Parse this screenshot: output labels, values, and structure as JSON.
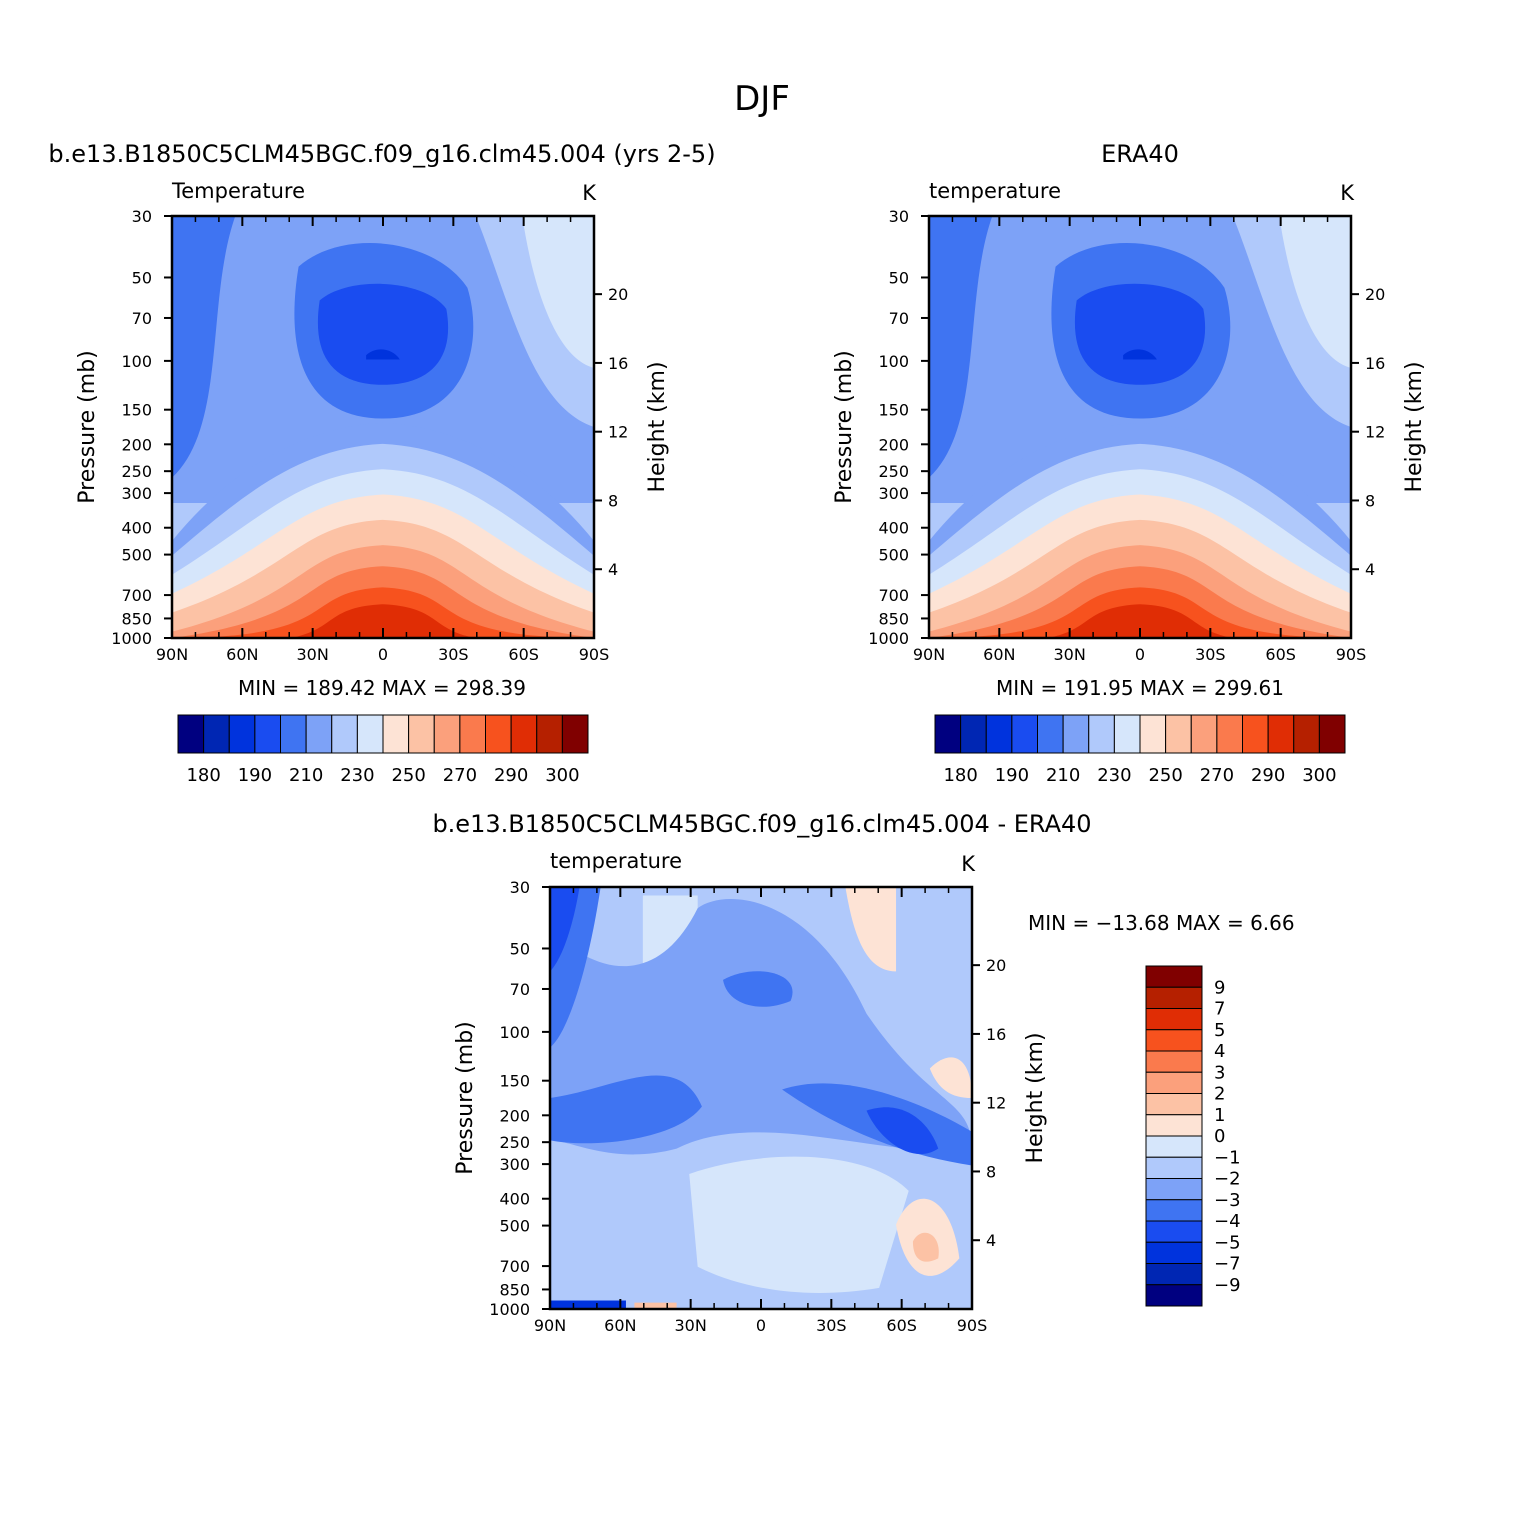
{
  "title": "DJF",
  "panels": [
    {
      "id": "model",
      "subtitle": "b.e13.B1850C5CLM45BGC.f09_g16.clm45.004 (yrs 2-5)",
      "left_label": "Temperature",
      "right_label": "K",
      "ylabel": "Pressure (mb)",
      "y2label": "Height (km)",
      "x_ticks": [
        "90N",
        "60N",
        "30N",
        "0",
        "30S",
        "60S",
        "90S"
      ],
      "p_ticks": [
        "30",
        "50",
        "70",
        "100",
        "150",
        "200",
        "250",
        "300",
        "400",
        "500",
        "700",
        "850",
        "1000"
      ],
      "h_ticks": [
        "20",
        "16",
        "12",
        "8",
        "4"
      ],
      "minmax": "MIN = 189.42   MAX = 298.39",
      "colorbar_labels": [
        "180",
        "190",
        "210",
        "230",
        "250",
        "270",
        "290",
        "300"
      ]
    },
    {
      "id": "obs",
      "subtitle": "ERA40",
      "left_label": "temperature",
      "right_label": "K",
      "ylabel": "Pressure (mb)",
      "y2label": "Height (km)",
      "x_ticks": [
        "90N",
        "60N",
        "30N",
        "0",
        "30S",
        "60S",
        "90S"
      ],
      "p_ticks": [
        "30",
        "50",
        "70",
        "100",
        "150",
        "200",
        "250",
        "300",
        "400",
        "500",
        "700",
        "850",
        "1000"
      ],
      "h_ticks": [
        "20",
        "16",
        "12",
        "8",
        "4"
      ],
      "minmax": "MIN = 191.95   MAX = 299.61",
      "colorbar_labels": [
        "180",
        "190",
        "210",
        "230",
        "250",
        "270",
        "290",
        "300"
      ]
    },
    {
      "id": "diff",
      "subtitle": "b.e13.B1850C5CLM45BGC.f09_g16.clm45.004 - ERA40",
      "left_label": "temperature",
      "right_label": "K",
      "ylabel": "Pressure (mb)",
      "y2label": "Height (km)",
      "x_ticks": [
        "90N",
        "60N",
        "30N",
        "0",
        "30S",
        "60S",
        "90S"
      ],
      "p_ticks": [
        "30",
        "50",
        "70",
        "100",
        "150",
        "200",
        "250",
        "300",
        "400",
        "500",
        "700",
        "850",
        "1000"
      ],
      "h_ticks": [
        "20",
        "16",
        "12",
        "8",
        "4"
      ],
      "minmax": "MIN = −13.68   MAX =     6.66",
      "colorbar_labels": [
        "9",
        "7",
        "5",
        "4",
        "3",
        "2",
        "1",
        "0",
        "−1",
        "−2",
        "−3",
        "−4",
        "−5",
        "−7",
        "−9"
      ]
    }
  ],
  "chart_data": [
    {
      "type": "heatmap",
      "title": "Temperature",
      "series_name": "b.e13.B1850C5CLM45BGC.f09_g16.clm45.004 (yrs 2-5)",
      "units": "K",
      "x": [
        "90N",
        "60N",
        "30N",
        "0",
        "30S",
        "60S",
        "90S"
      ],
      "y_pressure_mb": [
        30,
        50,
        70,
        100,
        150,
        200,
        250,
        300,
        400,
        500,
        700,
        850,
        1000
      ],
      "levels": [
        175,
        180,
        190,
        200,
        210,
        220,
        230,
        240,
        250,
        260,
        270,
        280,
        290,
        300
      ],
      "level_colors": [
        "#000080",
        "#0026b3",
        "#0033dd",
        "#1a4cf0",
        "#3f74f2",
        "#7da2f7",
        "#b0c9fb",
        "#d6e6fb",
        "#fde3d5",
        "#fcc2a5",
        "#fba07c",
        "#fa7a4d",
        "#f7521e",
        "#e02d05",
        "#b52000",
        "#800000"
      ],
      "min": 189.42,
      "max": 298.39
    },
    {
      "type": "heatmap",
      "title": "temperature",
      "series_name": "ERA40",
      "units": "K",
      "x": [
        "90N",
        "60N",
        "30N",
        "0",
        "30S",
        "60S",
        "90S"
      ],
      "y_pressure_mb": [
        30,
        50,
        70,
        100,
        150,
        200,
        250,
        300,
        400,
        500,
        700,
        850,
        1000
      ],
      "levels": [
        175,
        180,
        190,
        200,
        210,
        220,
        230,
        240,
        250,
        260,
        270,
        280,
        290,
        300
      ],
      "min": 191.95,
      "max": 299.61
    },
    {
      "type": "heatmap",
      "title": "temperature",
      "series_name": "b.e13.B1850C5CLM45BGC.f09_g16.clm45.004 - ERA40",
      "units": "K",
      "x": [
        "90N",
        "60N",
        "30N",
        "0",
        "30S",
        "60S",
        "90S"
      ],
      "y_pressure_mb": [
        30,
        50,
        70,
        100,
        150,
        200,
        250,
        300,
        400,
        500,
        700,
        850,
        1000
      ],
      "levels": [
        -9,
        -7,
        -5,
        -4,
        -3,
        -2,
        -1,
        0,
        1,
        2,
        3,
        4,
        5,
        7,
        9
      ],
      "min": -13.68,
      "max": 6.66
    }
  ]
}
